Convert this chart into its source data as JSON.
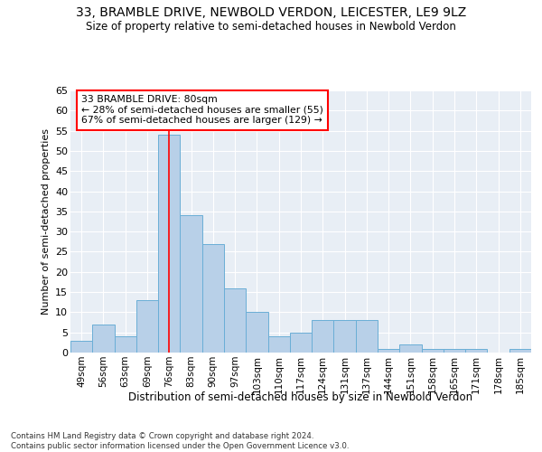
{
  "title1": "33, BRAMBLE DRIVE, NEWBOLD VERDON, LEICESTER, LE9 9LZ",
  "title2": "Size of property relative to semi-detached houses in Newbold Verdon",
  "xlabel": "Distribution of semi-detached houses by size in Newbold Verdon",
  "ylabel": "Number of semi-detached properties",
  "footnote": "Contains HM Land Registry data © Crown copyright and database right 2024.\nContains public sector information licensed under the Open Government Licence v3.0.",
  "annotation_title": "33 BRAMBLE DRIVE: 80sqm",
  "annotation_line2": "← 28% of semi-detached houses are smaller (55)",
  "annotation_line3": "67% of semi-detached houses are larger (129) →",
  "bar_color": "#b8d0e8",
  "bar_edge_color": "#6aaed6",
  "highlight_line_color": "red",
  "background_color": "#e8eef5",
  "grid_color": "white",
  "categories": [
    "49sqm",
    "56sqm",
    "63sqm",
    "69sqm",
    "76sqm",
    "83sqm",
    "90sqm",
    "97sqm",
    "103sqm",
    "110sqm",
    "117sqm",
    "124sqm",
    "131sqm",
    "137sqm",
    "144sqm",
    "151sqm",
    "158sqm",
    "165sqm",
    "171sqm",
    "178sqm",
    "185sqm"
  ],
  "values": [
    3,
    7,
    4,
    13,
    54,
    34,
    27,
    16,
    10,
    4,
    5,
    8,
    8,
    8,
    1,
    2,
    1,
    1,
    1,
    0,
    1
  ],
  "highlight_index": 4,
  "ylim": [
    0,
    65
  ],
  "yticks": [
    0,
    5,
    10,
    15,
    20,
    25,
    30,
    35,
    40,
    45,
    50,
    55,
    60,
    65
  ]
}
